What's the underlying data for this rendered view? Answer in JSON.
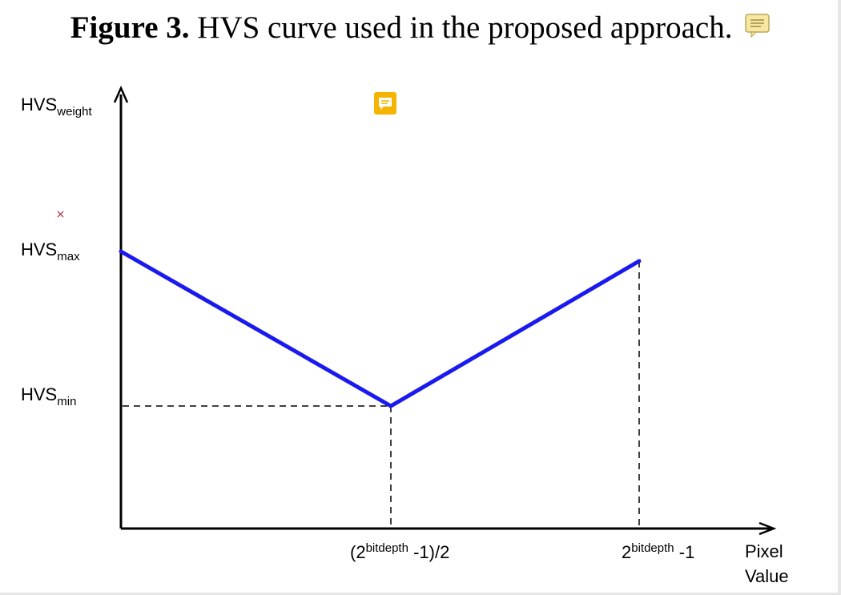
{
  "caption": {
    "label": "Figure 3.",
    "text": "HVS curve used in the proposed approach."
  },
  "icons": {
    "caption_note": "sticky-note-icon",
    "floating_comment": "comment-icon",
    "small_mark": "close-mark-icon"
  },
  "colors": {
    "curve": "#1a1aee",
    "axes": "#000000",
    "comment_icon": "#f4b400",
    "note_icon": "#f3e29a"
  },
  "y_axis": {
    "label_main": "HVS",
    "label_sub": "weight",
    "max_main": "HVS",
    "max_sub": "max",
    "min_main": "HVS",
    "min_sub": "min"
  },
  "x_axis": {
    "mid_prefix": "(2",
    "mid_sup": "bitdepth",
    "mid_suffix": " -1)/2",
    "end_prefix": "2",
    "end_sup": "bitdepth",
    "end_suffix": " -1",
    "label_line1": "Pixel",
    "label_line2": "Value"
  },
  "chart_data": {
    "type": "line",
    "series": [
      {
        "points": [
          {
            "x": "0",
            "y": "HVSmax"
          },
          {
            "x": "(2^bitdepth -1)/2",
            "y": "HVSmin"
          },
          {
            "x": "2^bitdepth -1",
            "y": "HVSmax"
          }
        ]
      }
    ],
    "guides": [
      "dashed line from HVSmin to the curve minimum",
      "dashed drop lines to x-axis at (2^bitdepth -1)/2 and 2^bitdepth -1"
    ]
  }
}
